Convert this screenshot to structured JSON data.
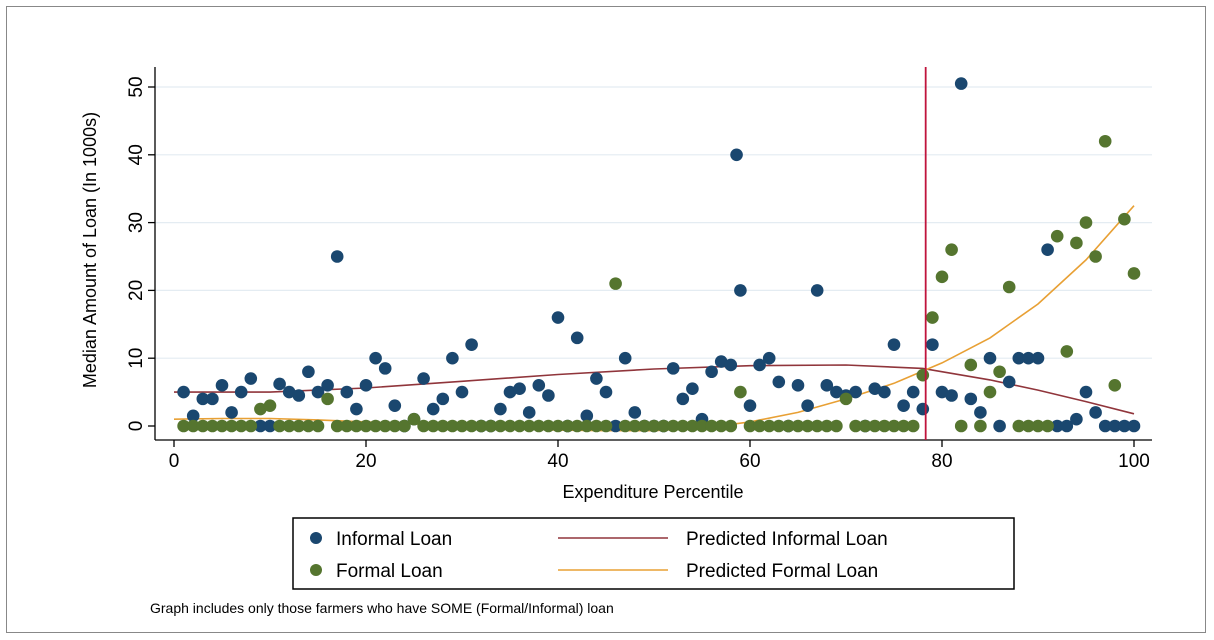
{
  "chart_data": {
    "type": "scatter",
    "xlabel": "Expenditure Percentile",
    "ylabel": "Median Amount of Loan (In 1000s)",
    "xlim": [
      0,
      100
    ],
    "ylim": [
      0,
      50
    ],
    "x_ticks": [
      0,
      20,
      40,
      60,
      80,
      100
    ],
    "y_ticks": [
      0,
      10,
      20,
      30,
      40,
      50
    ],
    "grid": "horizontal",
    "reference_line": {
      "x": 78.3,
      "color": "#c0143c"
    },
    "note": "Graph includes only those farmers who have SOME (Formal/Informal) loan",
    "legend": {
      "placement": "bottom",
      "entries": [
        {
          "label": "Informal Loan",
          "kind": "marker",
          "color": "#1a476f"
        },
        {
          "label": "Predicted Informal Loan",
          "kind": "line",
          "color": "#90353b"
        },
        {
          "label": "Formal Loan",
          "kind": "marker",
          "color": "#55752f"
        },
        {
          "label": "Predicted Formal Loan",
          "kind": "line",
          "color": "#e8a034"
        }
      ]
    },
    "series": [
      {
        "name": "Informal Loan",
        "kind": "scatter",
        "color": "#1a476f",
        "points": [
          [
            1,
            5
          ],
          [
            2,
            1.5
          ],
          [
            3,
            4
          ],
          [
            4,
            4
          ],
          [
            5,
            6
          ],
          [
            6,
            2
          ],
          [
            7,
            5
          ],
          [
            8,
            7
          ],
          [
            9,
            0
          ],
          [
            10,
            0
          ],
          [
            11,
            6.2
          ],
          [
            12,
            5
          ],
          [
            13,
            4.5
          ],
          [
            14,
            8
          ],
          [
            15,
            5
          ],
          [
            16,
            6
          ],
          [
            17,
            25
          ],
          [
            18,
            5
          ],
          [
            19,
            2.5
          ],
          [
            20,
            6
          ],
          [
            21,
            10
          ],
          [
            22,
            8.5
          ],
          [
            23,
            3
          ],
          [
            24,
            0
          ],
          [
            25,
            1
          ],
          [
            26,
            7
          ],
          [
            27,
            2.5
          ],
          [
            28,
            4
          ],
          [
            29,
            10
          ],
          [
            30,
            5
          ],
          [
            31,
            12
          ],
          [
            32,
            0
          ],
          [
            33,
            0
          ],
          [
            34,
            2.5
          ],
          [
            35,
            5
          ],
          [
            36,
            5.5
          ],
          [
            37,
            2
          ],
          [
            38,
            6
          ],
          [
            39,
            4.5
          ],
          [
            40,
            16
          ],
          [
            41,
            0
          ],
          [
            42,
            13
          ],
          [
            43,
            1.5
          ],
          [
            44,
            7
          ],
          [
            45,
            5
          ],
          [
            46,
            0
          ],
          [
            47,
            10
          ],
          [
            48,
            2
          ],
          [
            49,
            0
          ],
          [
            50,
            0
          ],
          [
            51,
            0
          ],
          [
            52,
            8.5
          ],
          [
            53,
            4
          ],
          [
            54,
            5.5
          ],
          [
            55,
            1
          ],
          [
            56,
            8
          ],
          [
            57,
            9.5
          ],
          [
            58,
            9
          ],
          [
            58.6,
            40
          ],
          [
            59,
            20
          ],
          [
            60,
            3
          ],
          [
            61,
            9
          ],
          [
            62,
            10
          ],
          [
            63,
            6.5
          ],
          [
            64,
            0
          ],
          [
            65,
            6
          ],
          [
            66,
            3
          ],
          [
            67,
            20
          ],
          [
            68,
            6
          ],
          [
            69,
            5
          ],
          [
            70,
            4.5
          ],
          [
            71,
            5
          ],
          [
            72,
            0
          ],
          [
            73,
            5.5
          ],
          [
            74,
            5
          ],
          [
            75,
            12
          ],
          [
            76,
            3
          ],
          [
            77,
            5
          ],
          [
            78,
            2.5
          ],
          [
            79,
            12
          ],
          [
            80,
            5
          ],
          [
            81,
            4.5
          ],
          [
            82,
            50.5
          ],
          [
            83,
            4
          ],
          [
            84,
            2
          ],
          [
            85,
            10
          ],
          [
            86,
            0
          ],
          [
            87,
            6.5
          ],
          [
            88,
            10
          ],
          [
            89,
            10
          ],
          [
            90,
            10
          ],
          [
            91,
            26
          ],
          [
            92,
            0
          ],
          [
            93,
            0
          ],
          [
            94,
            1
          ],
          [
            95,
            5
          ],
          [
            96,
            2
          ],
          [
            97,
            0
          ],
          [
            98,
            0
          ],
          [
            99,
            0
          ],
          [
            100,
            0
          ]
        ]
      },
      {
        "name": "Formal Loan",
        "kind": "scatter",
        "color": "#55752f",
        "points": [
          [
            1,
            0
          ],
          [
            2,
            0
          ],
          [
            3,
            0
          ],
          [
            4,
            0
          ],
          [
            5,
            0
          ],
          [
            6,
            0
          ],
          [
            7,
            0
          ],
          [
            8,
            0
          ],
          [
            9,
            2.5
          ],
          [
            10,
            3
          ],
          [
            11,
            0
          ],
          [
            12,
            0
          ],
          [
            13,
            0
          ],
          [
            14,
            0
          ],
          [
            15,
            0
          ],
          [
            16,
            4
          ],
          [
            17,
            0
          ],
          [
            18,
            0
          ],
          [
            19,
            0
          ],
          [
            20,
            0
          ],
          [
            21,
            0
          ],
          [
            22,
            0
          ],
          [
            23,
            0
          ],
          [
            24,
            0
          ],
          [
            25,
            1
          ],
          [
            26,
            0
          ],
          [
            27,
            0
          ],
          [
            28,
            0
          ],
          [
            29,
            0
          ],
          [
            30,
            0
          ],
          [
            31,
            0
          ],
          [
            32,
            0
          ],
          [
            33,
            0
          ],
          [
            34,
            0
          ],
          [
            35,
            0
          ],
          [
            36,
            0
          ],
          [
            37,
            0
          ],
          [
            38,
            0
          ],
          [
            39,
            0
          ],
          [
            40,
            0
          ],
          [
            41,
            0
          ],
          [
            42,
            0
          ],
          [
            43,
            0
          ],
          [
            44,
            0
          ],
          [
            45,
            0
          ],
          [
            46,
            21
          ],
          [
            47,
            0
          ],
          [
            48,
            0
          ],
          [
            49,
            0
          ],
          [
            50,
            0
          ],
          [
            51,
            0
          ],
          [
            52,
            0
          ],
          [
            53,
            0
          ],
          [
            54,
            0
          ],
          [
            55,
            0
          ],
          [
            56,
            0
          ],
          [
            57,
            0
          ],
          [
            58,
            0
          ],
          [
            59,
            5
          ],
          [
            60,
            0
          ],
          [
            61,
            0
          ],
          [
            62,
            0
          ],
          [
            63,
            0
          ],
          [
            64,
            0
          ],
          [
            65,
            0
          ],
          [
            66,
            0
          ],
          [
            67,
            0
          ],
          [
            68,
            0
          ],
          [
            69,
            0
          ],
          [
            70,
            4
          ],
          [
            71,
            0
          ],
          [
            72,
            0
          ],
          [
            73,
            0
          ],
          [
            74,
            0
          ],
          [
            75,
            0
          ],
          [
            76,
            0
          ],
          [
            77,
            0
          ],
          [
            78,
            7.5
          ],
          [
            79,
            16
          ],
          [
            80,
            22
          ],
          [
            81,
            26
          ],
          [
            82,
            0
          ],
          [
            83,
            9
          ],
          [
            84,
            0
          ],
          [
            85,
            5
          ],
          [
            86,
            8
          ],
          [
            87,
            20.5
          ],
          [
            88,
            0
          ],
          [
            89,
            0
          ],
          [
            90,
            0
          ],
          [
            91,
            0
          ],
          [
            92,
            28
          ],
          [
            93,
            11
          ],
          [
            94,
            27
          ],
          [
            95,
            30
          ],
          [
            96,
            25
          ],
          [
            97,
            42
          ],
          [
            98,
            6
          ],
          [
            99,
            30.5
          ],
          [
            100,
            22.5
          ]
        ]
      },
      {
        "name": "Predicted Informal Loan",
        "kind": "line",
        "color": "#90353b",
        "points": [
          [
            0,
            5
          ],
          [
            10,
            5
          ],
          [
            20,
            5.6
          ],
          [
            30,
            6.6
          ],
          [
            40,
            7.6
          ],
          [
            50,
            8.4
          ],
          [
            60,
            8.9
          ],
          [
            70,
            9
          ],
          [
            78,
            8.5
          ],
          [
            85,
            6.8
          ],
          [
            90,
            5.3
          ],
          [
            95,
            3.6
          ],
          [
            100,
            1.8
          ]
        ]
      },
      {
        "name": "Predicted Formal Loan",
        "kind": "line",
        "color": "#e8a034",
        "points": [
          [
            0,
            1
          ],
          [
            5,
            1.1
          ],
          [
            10,
            1.1
          ],
          [
            15,
            0.9
          ],
          [
            20,
            0.6
          ],
          [
            25,
            0.3
          ],
          [
            30,
            0
          ],
          [
            35,
            -0.4
          ],
          [
            40,
            -0.6
          ],
          [
            45,
            -0.7
          ],
          [
            50,
            -0.7
          ],
          [
            55,
            -0.3
          ],
          [
            60,
            0.6
          ],
          [
            65,
            2
          ],
          [
            70,
            4
          ],
          [
            75,
            6.3
          ],
          [
            80,
            9.3
          ],
          [
            85,
            13
          ],
          [
            90,
            18
          ],
          [
            95,
            24.5
          ],
          [
            100,
            32.5
          ]
        ]
      }
    ]
  }
}
